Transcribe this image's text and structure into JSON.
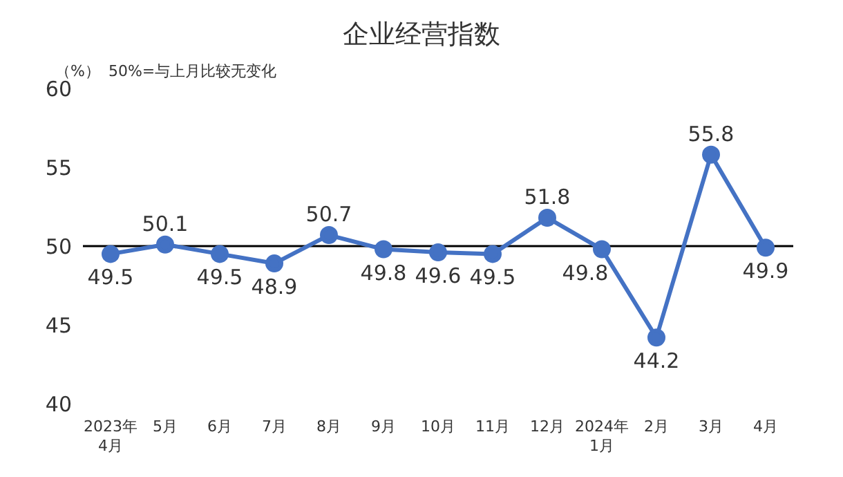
{
  "chart_data": {
    "type": "line",
    "title": "企业经营指数",
    "ylabel": "（%）",
    "annotations": [
      "50%=与上月比较无变化"
    ],
    "categories": [
      "2023年\n4月",
      "5月",
      "6月",
      "7月",
      "8月",
      "9月",
      "10月",
      "11月",
      "12月",
      "2024年\n1月",
      "2月",
      "3月",
      "4月"
    ],
    "series": [
      {
        "color": "#4472c4",
        "values": [
          49.5,
          50.1,
          49.5,
          48.9,
          50.7,
          49.8,
          49.6,
          49.5,
          51.8,
          49.8,
          44.2,
          55.8,
          49.9
        ]
      }
    ],
    "ylim": [
      40,
      60
    ],
    "yticks": [
      40,
      45,
      50,
      55,
      60
    ],
    "ref_lines": [
      {
        "axis": "y",
        "value": 50,
        "color": "#000000"
      }
    ],
    "grid": false,
    "legend": false,
    "marker": "circle",
    "line_style": "solid",
    "data_labels": true
  }
}
